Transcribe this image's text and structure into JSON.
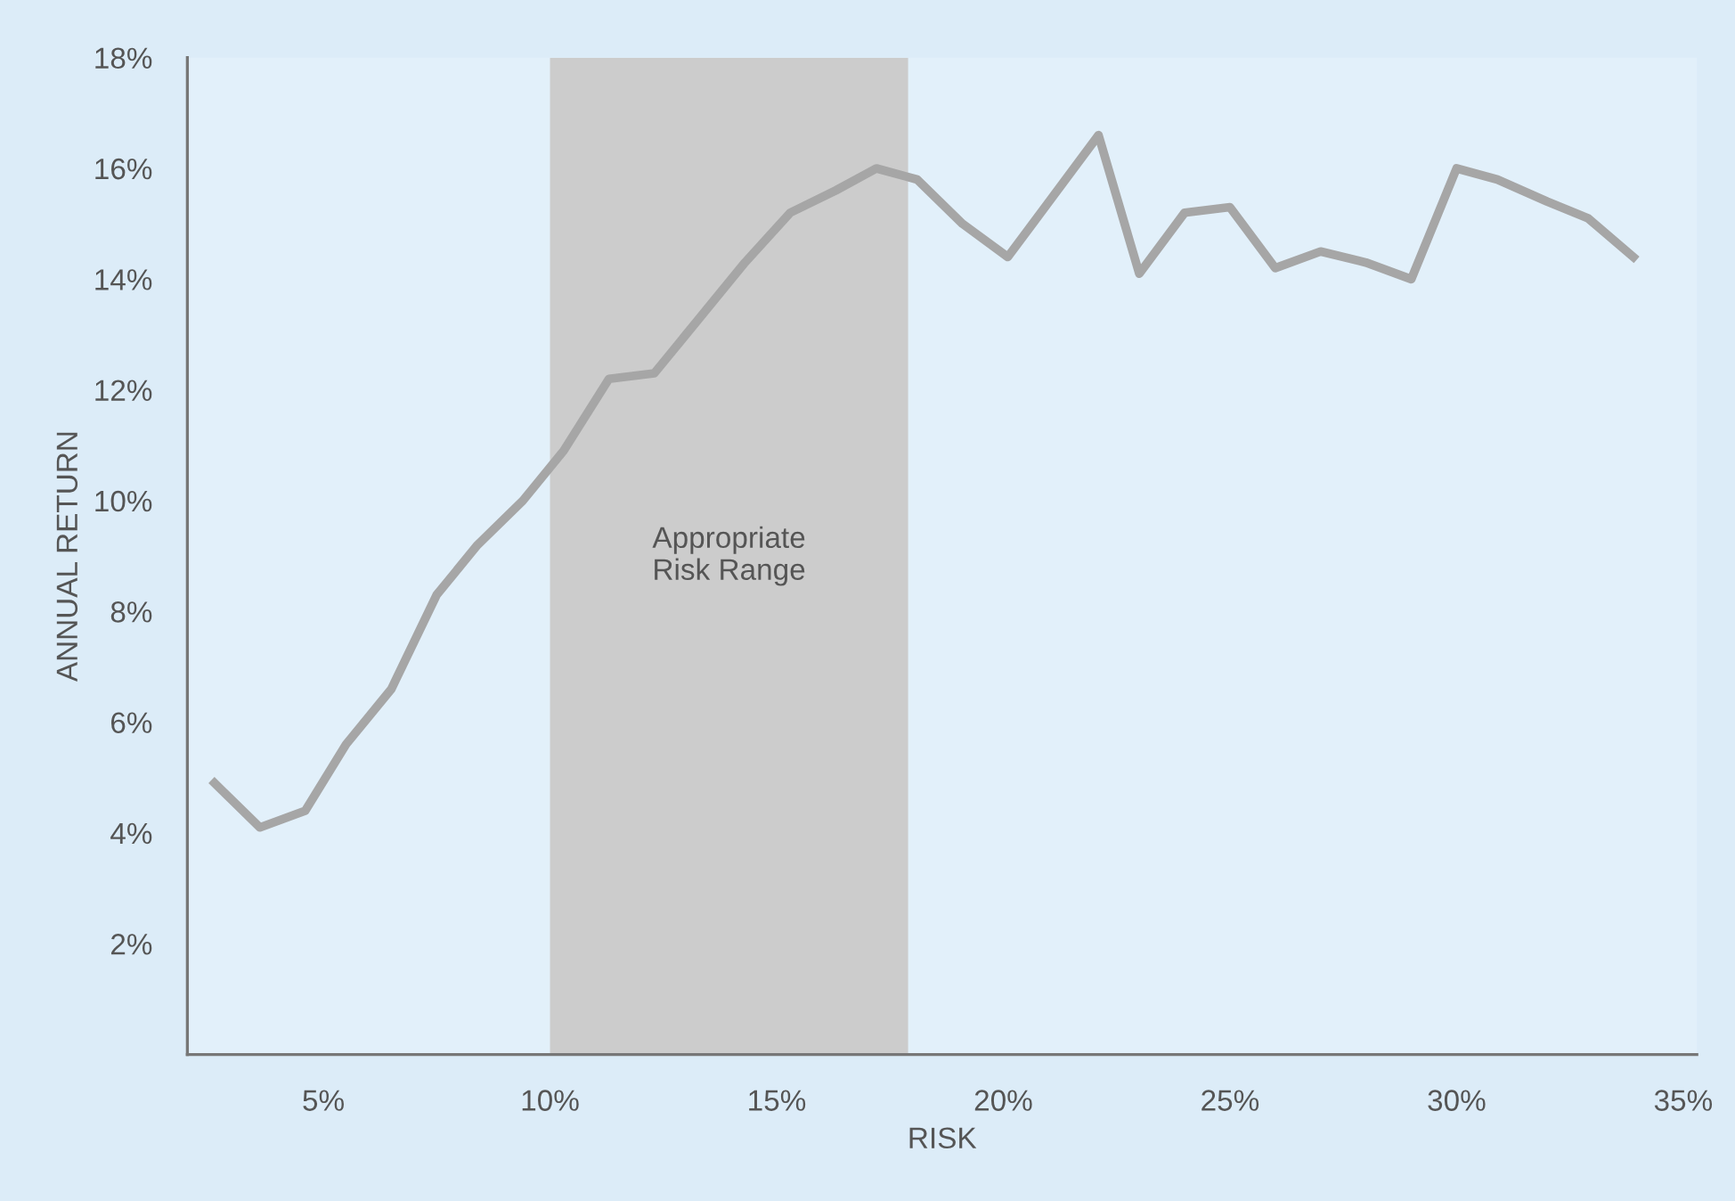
{
  "chart_data": {
    "type": "line",
    "xlabel": "RISK",
    "ylabel": "ANNUAL RETURN",
    "series": [
      {
        "color": "#a6a6a6",
        "x": [
          2.6,
          3.6,
          4.6,
          5.5,
          6.5,
          7.5,
          8.4,
          9.4,
          10.3,
          11.3,
          12.3,
          13.3,
          14.3,
          15.3,
          16.3,
          17.2,
          18.1,
          19.1,
          20.1,
          21.1,
          22.1,
          23.0,
          24.0,
          25.0,
          26.0,
          27.0,
          28.0,
          29.0,
          30.0,
          30.9,
          32.0,
          32.9,
          33.9
        ],
        "values": [
          4.9,
          4.1,
          4.4,
          5.6,
          6.6,
          8.3,
          9.2,
          10.0,
          10.9,
          12.2,
          12.3,
          13.3,
          14.3,
          15.2,
          15.6,
          16.0,
          15.8,
          15.0,
          14.4,
          15.5,
          16.6,
          14.1,
          15.2,
          15.3,
          14.2,
          14.5,
          14.3,
          14.0,
          16.0,
          15.8,
          15.4,
          15.1,
          14.4
        ]
      }
    ],
    "xlim": [
      2,
      35.3
    ],
    "ylim": [
      0,
      18
    ],
    "xticks": [
      {
        "value": 5,
        "label": "5%"
      },
      {
        "value": 10,
        "label": "10%"
      },
      {
        "value": 15,
        "label": "15%"
      },
      {
        "value": 20,
        "label": "20%"
      },
      {
        "value": 25,
        "label": "25%"
      },
      {
        "value": 30,
        "label": "30%"
      },
      {
        "value": 35,
        "label": "35%"
      }
    ],
    "yticks": [
      {
        "value": 2,
        "label": "2%"
      },
      {
        "value": 4,
        "label": "4%"
      },
      {
        "value": 6,
        "label": "6%"
      },
      {
        "value": 8,
        "label": "8%"
      },
      {
        "value": 10,
        "label": "10%"
      },
      {
        "value": 12,
        "label": "12%"
      },
      {
        "value": 14,
        "label": "14%"
      },
      {
        "value": 16,
        "label": "16%"
      },
      {
        "value": 18,
        "label": "18%"
      }
    ],
    "bands": [
      {
        "axis": "x",
        "from": 10,
        "to": 17.9,
        "label": "Appropriate\nRisk Range",
        "color": "#cccccc"
      }
    ],
    "grid": false,
    "legend": false,
    "marker": "none",
    "line_style": "solid"
  }
}
